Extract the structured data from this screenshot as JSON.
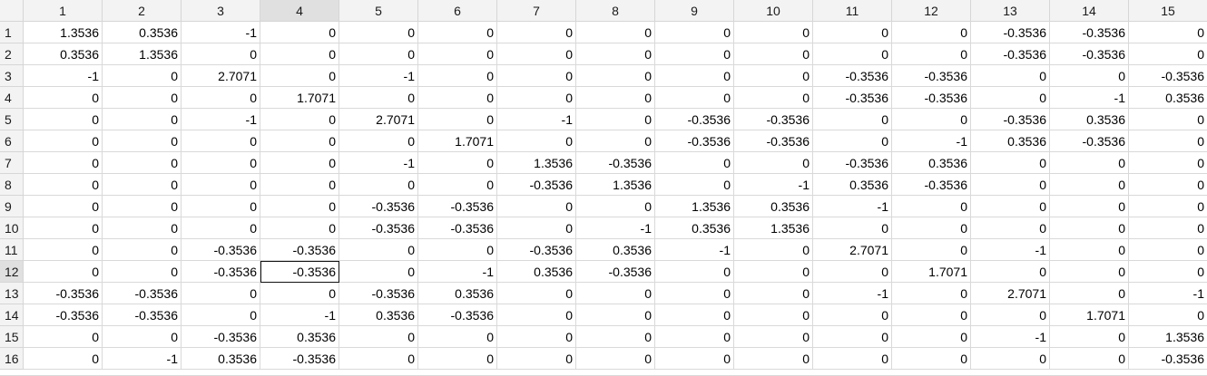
{
  "columns": [
    "1",
    "2",
    "3",
    "4",
    "5",
    "6",
    "7",
    "8",
    "9",
    "10",
    "11",
    "12",
    "13",
    "14",
    "15"
  ],
  "active_column": 3,
  "active_row": 11,
  "rows": [
    {
      "label": "1",
      "cells": [
        "1.3536",
        "0.3536",
        "-1",
        "0",
        "0",
        "0",
        "0",
        "0",
        "0",
        "0",
        "0",
        "0",
        "-0.3536",
        "-0.3536",
        "0"
      ]
    },
    {
      "label": "2",
      "cells": [
        "0.3536",
        "1.3536",
        "0",
        "0",
        "0",
        "0",
        "0",
        "0",
        "0",
        "0",
        "0",
        "0",
        "-0.3536",
        "-0.3536",
        "0"
      ]
    },
    {
      "label": "3",
      "cells": [
        "-1",
        "0",
        "2.7071",
        "0",
        "-1",
        "0",
        "0",
        "0",
        "0",
        "0",
        "-0.3536",
        "-0.3536",
        "0",
        "0",
        "-0.3536"
      ]
    },
    {
      "label": "4",
      "cells": [
        "0",
        "0",
        "0",
        "1.7071",
        "0",
        "0",
        "0",
        "0",
        "0",
        "0",
        "-0.3536",
        "-0.3536",
        "0",
        "-1",
        "0.3536"
      ]
    },
    {
      "label": "5",
      "cells": [
        "0",
        "0",
        "-1",
        "0",
        "2.7071",
        "0",
        "-1",
        "0",
        "-0.3536",
        "-0.3536",
        "0",
        "0",
        "-0.3536",
        "0.3536",
        "0"
      ]
    },
    {
      "label": "6",
      "cells": [
        "0",
        "0",
        "0",
        "0",
        "0",
        "1.7071",
        "0",
        "0",
        "-0.3536",
        "-0.3536",
        "0",
        "-1",
        "0.3536",
        "-0.3536",
        "0"
      ]
    },
    {
      "label": "7",
      "cells": [
        "0",
        "0",
        "0",
        "0",
        "-1",
        "0",
        "1.3536",
        "-0.3536",
        "0",
        "0",
        "-0.3536",
        "0.3536",
        "0",
        "0",
        "0"
      ]
    },
    {
      "label": "8",
      "cells": [
        "0",
        "0",
        "0",
        "0",
        "0",
        "0",
        "-0.3536",
        "1.3536",
        "0",
        "-1",
        "0.3536",
        "-0.3536",
        "0",
        "0",
        "0"
      ]
    },
    {
      "label": "9",
      "cells": [
        "0",
        "0",
        "0",
        "0",
        "-0.3536",
        "-0.3536",
        "0",
        "0",
        "1.3536",
        "0.3536",
        "-1",
        "0",
        "0",
        "0",
        "0"
      ]
    },
    {
      "label": "10",
      "cells": [
        "0",
        "0",
        "0",
        "0",
        "-0.3536",
        "-0.3536",
        "0",
        "-1",
        "0.3536",
        "1.3536",
        "0",
        "0",
        "0",
        "0",
        "0"
      ]
    },
    {
      "label": "11",
      "cells": [
        "0",
        "0",
        "-0.3536",
        "-0.3536",
        "0",
        "0",
        "-0.3536",
        "0.3536",
        "-1",
        "0",
        "2.7071",
        "0",
        "-1",
        "0",
        "0"
      ]
    },
    {
      "label": "12",
      "cells": [
        "0",
        "0",
        "-0.3536",
        "-0.3536",
        "0",
        "-1",
        "0.3536",
        "-0.3536",
        "0",
        "0",
        "0",
        "1.7071",
        "0",
        "0",
        "0"
      ]
    },
    {
      "label": "13",
      "cells": [
        "-0.3536",
        "-0.3536",
        "0",
        "0",
        "-0.3536",
        "0.3536",
        "0",
        "0",
        "0",
        "0",
        "-1",
        "0",
        "2.7071",
        "0",
        "-1"
      ]
    },
    {
      "label": "14",
      "cells": [
        "-0.3536",
        "-0.3536",
        "0",
        "-1",
        "0.3536",
        "-0.3536",
        "0",
        "0",
        "0",
        "0",
        "0",
        "0",
        "0",
        "1.7071",
        "0"
      ]
    },
    {
      "label": "15",
      "cells": [
        "0",
        "0",
        "-0.3536",
        "0.3536",
        "0",
        "0",
        "0",
        "0",
        "0",
        "0",
        "0",
        "0",
        "-1",
        "0",
        "1.3536"
      ]
    },
    {
      "label": "16",
      "cells": [
        "0",
        "-1",
        "0.3536",
        "-0.3536",
        "0",
        "0",
        "0",
        "0",
        "0",
        "0",
        "0",
        "0",
        "0",
        "0",
        "-0.3536"
      ]
    }
  ]
}
